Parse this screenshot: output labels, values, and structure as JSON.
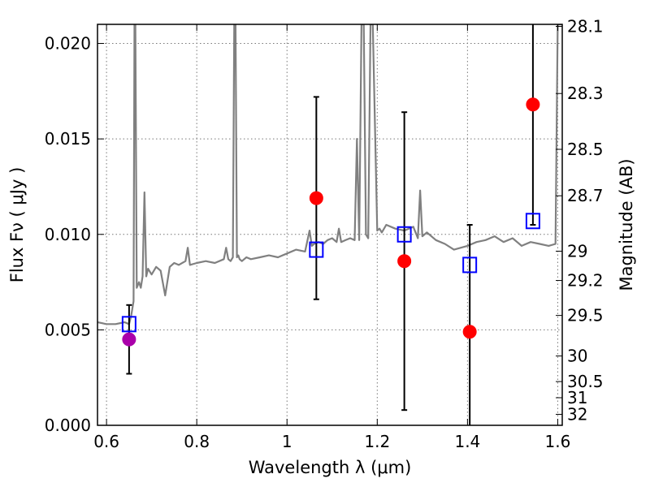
{
  "chart_data": {
    "type": "scatter",
    "xlabel": "Wavelength  λ (μm)",
    "ylabel_left": "Flux  Fν  ( μJy )",
    "ylabel_right": "Magnitude (AB)",
    "xlim": [
      0.58,
      1.61
    ],
    "ylim": [
      0.0,
      0.021
    ],
    "x_ticks": [
      0.6,
      0.8,
      1.0,
      1.2,
      1.4,
      1.6
    ],
    "x_tick_labels": [
      "0.6",
      "0.8",
      "1",
      "1.2",
      "1.4",
      "1.6"
    ],
    "y_ticks": [
      0.0,
      0.005,
      0.01,
      0.015,
      0.02
    ],
    "y_tick_labels": [
      "0.000",
      "0.005",
      "0.010",
      "0.015",
      "0.020"
    ],
    "right_ticks": [
      {
        "label": "28.1",
        "mag": 28.1
      },
      {
        "label": "28.3",
        "mag": 28.3
      },
      {
        "label": "28.5",
        "mag": 28.5
      },
      {
        "label": "28.7",
        "mag": 28.7
      },
      {
        "label": "29",
        "mag": 29.0
      },
      {
        "label": "29.2",
        "mag": 29.2
      },
      {
        "label": "29.5",
        "mag": 29.5
      },
      {
        "label": "30",
        "mag": 30.0
      },
      {
        "label": "30.5",
        "mag": 30.5
      },
      {
        "label": "31",
        "mag": 31.0
      },
      {
        "label": "32",
        "mag": 32.0
      }
    ],
    "grid": true,
    "colors": {
      "spectrum": "#808080",
      "measured": "#ff0000",
      "measured_first": "#aa00aa",
      "model": "#0000ff",
      "errorbar": "#000000"
    },
    "spectrum": {
      "x": [
        0.58,
        0.6,
        0.62,
        0.64,
        0.65,
        0.655,
        0.66,
        0.662,
        0.664,
        0.667,
        0.672,
        0.676,
        0.68,
        0.684,
        0.688,
        0.692,
        0.7,
        0.71,
        0.72,
        0.73,
        0.74,
        0.75,
        0.76,
        0.775,
        0.78,
        0.785,
        0.8,
        0.82,
        0.84,
        0.86,
        0.865,
        0.87,
        0.875,
        0.88,
        0.883,
        0.886,
        0.889,
        0.892,
        0.895,
        0.9,
        0.91,
        0.92,
        0.94,
        0.96,
        0.98,
        1.0,
        1.02,
        1.04,
        1.05,
        1.055,
        1.06,
        1.07,
        1.08,
        1.09,
        1.1,
        1.11,
        1.115,
        1.12,
        1.13,
        1.14,
        1.15,
        1.155,
        1.16,
        1.165,
        1.17,
        1.175,
        1.18,
        1.185,
        1.19,
        1.2,
        1.205,
        1.21,
        1.22,
        1.24,
        1.26,
        1.28,
        1.29,
        1.295,
        1.3,
        1.31,
        1.33,
        1.35,
        1.37,
        1.4,
        1.42,
        1.44,
        1.46,
        1.48,
        1.5,
        1.52,
        1.54,
        1.56,
        1.58,
        1.595,
        1.6,
        1.605,
        1.61
      ],
      "y": [
        0.0054,
        0.0053,
        0.0053,
        0.0054,
        0.0053,
        0.0058,
        0.0065,
        0.021,
        0.021,
        0.0072,
        0.0075,
        0.0072,
        0.0078,
        0.0122,
        0.0078,
        0.0082,
        0.0079,
        0.0083,
        0.0081,
        0.0068,
        0.0083,
        0.0085,
        0.0084,
        0.0086,
        0.0093,
        0.0084,
        0.0085,
        0.0086,
        0.0085,
        0.0087,
        0.0093,
        0.0087,
        0.0086,
        0.0088,
        0.021,
        0.021,
        0.0088,
        0.0089,
        0.0087,
        0.0086,
        0.0088,
        0.0087,
        0.0088,
        0.0089,
        0.0088,
        0.009,
        0.0092,
        0.0091,
        0.0102,
        0.0094,
        0.0095,
        0.0096,
        0.0095,
        0.0097,
        0.0098,
        0.0096,
        0.0103,
        0.0096,
        0.0097,
        0.0098,
        0.0097,
        0.015,
        0.0097,
        0.021,
        0.021,
        0.01,
        0.0098,
        0.021,
        0.021,
        0.0102,
        0.0103,
        0.0101,
        0.0105,
        0.0103,
        0.0102,
        0.0104,
        0.0098,
        0.0123,
        0.0099,
        0.0101,
        0.0097,
        0.0095,
        0.0092,
        0.0094,
        0.0096,
        0.0097,
        0.0099,
        0.0096,
        0.0098,
        0.0094,
        0.0096,
        0.0095,
        0.0094,
        0.0095,
        0.021,
        0.021,
        0.021
      ]
    },
    "measured": {
      "x": [
        0.65,
        1.065,
        1.26,
        1.405,
        1.545
      ],
      "y": [
        0.0045,
        0.0119,
        0.0086,
        0.0049,
        0.0168
      ],
      "err_low": [
        0.0027,
        0.0066,
        0.0008,
        0.0,
        0.0105
      ],
      "err_high": [
        0.0063,
        0.0172,
        0.0164,
        0.0105,
        0.021
      ]
    },
    "model": {
      "x": [
        0.65,
        1.065,
        1.26,
        1.405,
        1.545
      ],
      "y": [
        0.0053,
        0.0092,
        0.01,
        0.0084,
        0.0107
      ]
    }
  }
}
